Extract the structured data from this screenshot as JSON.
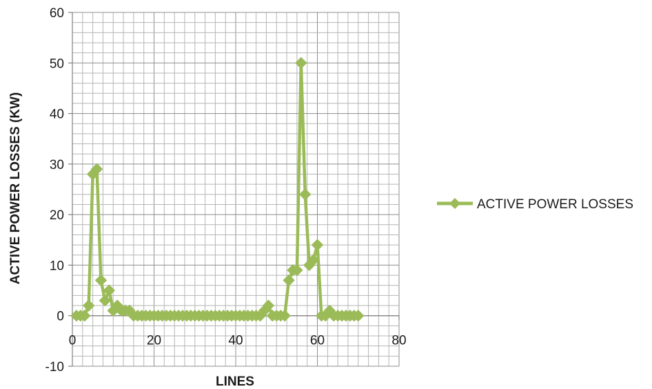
{
  "chart_data": {
    "type": "scatter",
    "title": "",
    "xlabel": "LINES",
    "ylabel": "ACTIVE POWER LOSSES (KW)",
    "xlim": [
      0,
      80
    ],
    "ylim": [
      -10,
      60
    ],
    "xticks": [
      0,
      20,
      40,
      60,
      80
    ],
    "yticks": [
      -10,
      0,
      10,
      20,
      30,
      40,
      50,
      60
    ],
    "grid": true,
    "legend_position": "right",
    "series": [
      {
        "name": "ACTIVE POWER LOSSES",
        "color": "#9bbb59",
        "marker": "diamond",
        "line": "straight",
        "points": [
          [
            1,
            0
          ],
          [
            2,
            0
          ],
          [
            3,
            0
          ],
          [
            4,
            2
          ],
          [
            5,
            28
          ],
          [
            6,
            29
          ],
          [
            7,
            7
          ],
          [
            8,
            3
          ],
          [
            9,
            5
          ],
          [
            10,
            1
          ],
          [
            11,
            2
          ],
          [
            12,
            1
          ],
          [
            13,
            1
          ],
          [
            14,
            1
          ],
          [
            15,
            0
          ],
          [
            16,
            0
          ],
          [
            17,
            0
          ],
          [
            18,
            0
          ],
          [
            19,
            0
          ],
          [
            20,
            0
          ],
          [
            21,
            0
          ],
          [
            22,
            0
          ],
          [
            23,
            0
          ],
          [
            24,
            0
          ],
          [
            25,
            0
          ],
          [
            26,
            0
          ],
          [
            27,
            0
          ],
          [
            28,
            0
          ],
          [
            29,
            0
          ],
          [
            30,
            0
          ],
          [
            31,
            0
          ],
          [
            32,
            0
          ],
          [
            33,
            0
          ],
          [
            34,
            0
          ],
          [
            35,
            0
          ],
          [
            36,
            0
          ],
          [
            37,
            0
          ],
          [
            38,
            0
          ],
          [
            39,
            0
          ],
          [
            40,
            0
          ],
          [
            41,
            0
          ],
          [
            42,
            0
          ],
          [
            43,
            0
          ],
          [
            44,
            0
          ],
          [
            45,
            0
          ],
          [
            46,
            0
          ],
          [
            47,
            1
          ],
          [
            48,
            2
          ],
          [
            49,
            0
          ],
          [
            50,
            0
          ],
          [
            51,
            0
          ],
          [
            52,
            0
          ],
          [
            53,
            7
          ],
          [
            54,
            9
          ],
          [
            55,
            9
          ],
          [
            56,
            50
          ],
          [
            57,
            24
          ],
          [
            58,
            10
          ],
          [
            59,
            11
          ],
          [
            60,
            14
          ],
          [
            61,
            0
          ],
          [
            62,
            0
          ],
          [
            63,
            1
          ],
          [
            64,
            0
          ],
          [
            65,
            0
          ],
          [
            66,
            0
          ],
          [
            67,
            0
          ],
          [
            68,
            0
          ],
          [
            69,
            0
          ],
          [
            70,
            0
          ]
        ]
      }
    ]
  }
}
